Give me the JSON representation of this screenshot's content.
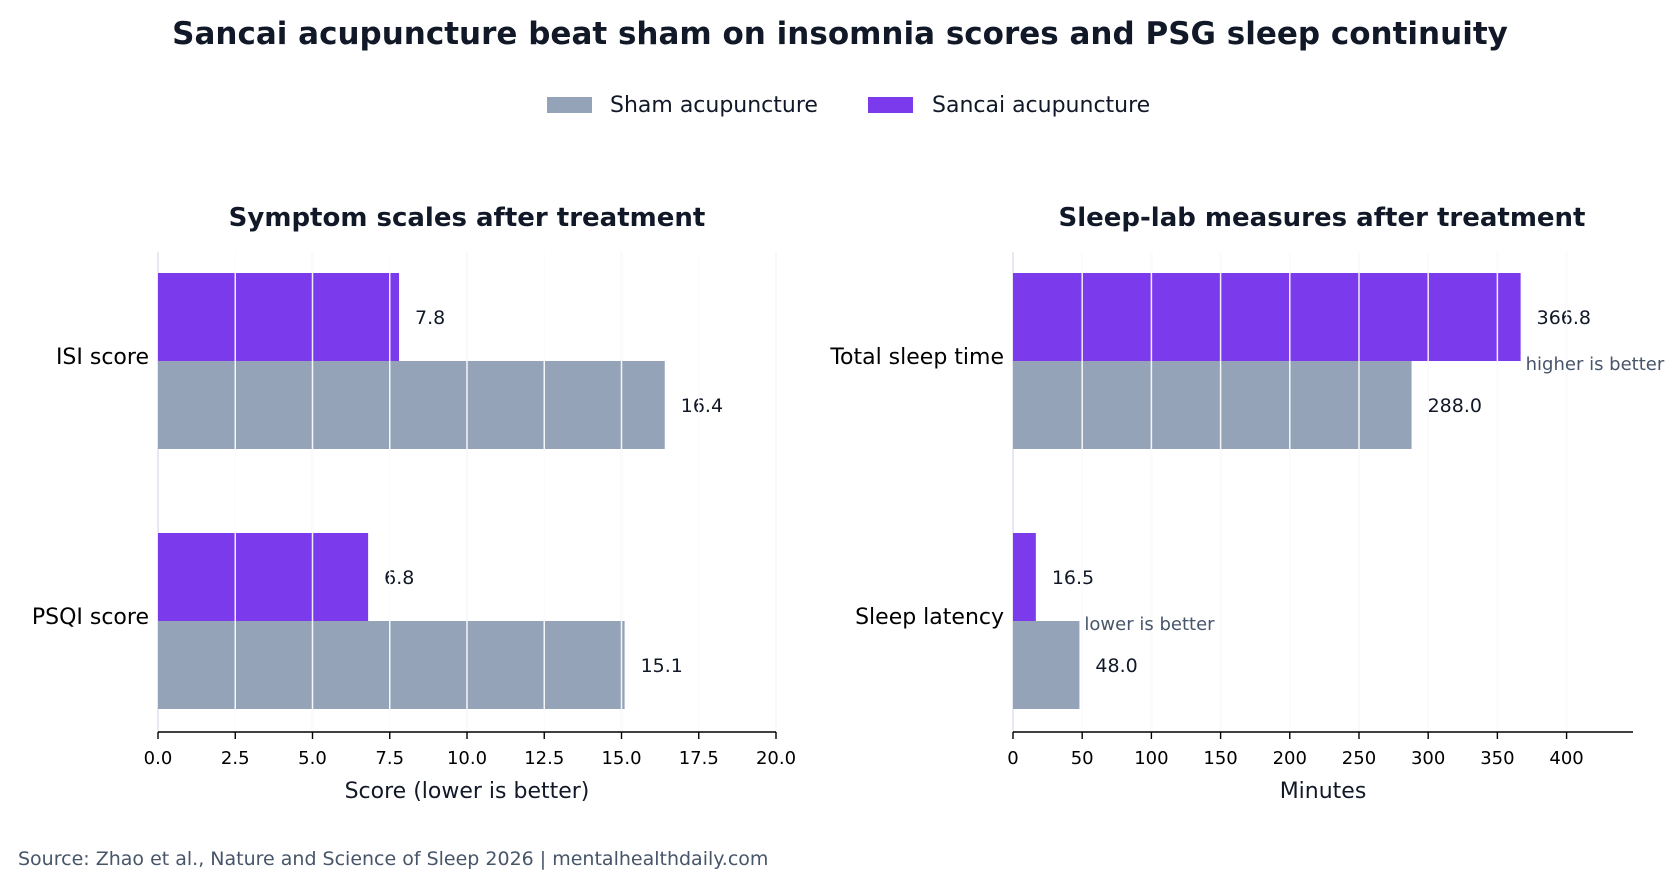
{
  "title": "Sancai acupuncture beat sham on insomnia scores and PSG sleep continuity",
  "legend": [
    {
      "name": "Sham acupuncture",
      "color": "#94a3b8"
    },
    {
      "name": "Sancai acupuncture",
      "color": "#7c3aed"
    }
  ],
  "source": "Source: Zhao et al., Nature and Science of Sleep 2026 | mentalhealthdaily.com",
  "colors": {
    "grid": "#e0e0ee",
    "gridOverlay": "#ffffff",
    "axis": "#000000"
  },
  "chart_data": [
    {
      "type": "bar",
      "orientation": "horizontal",
      "title": "Symptom scales after treatment",
      "categories": [
        "ISI score",
        "PSQI score"
      ],
      "series": [
        {
          "name": "Sancai acupuncture",
          "values": [
            7.8,
            6.8
          ],
          "value_labels": [
            "7.8",
            "6.8"
          ]
        },
        {
          "name": "Sham acupuncture",
          "values": [
            16.4,
            15.1
          ],
          "value_labels": [
            "16.4",
            "15.1"
          ]
        }
      ],
      "xlabel": "Score (lower is better)",
      "xlim": [
        0,
        20
      ],
      "xticks": [
        0,
        2.5,
        5,
        7.5,
        10,
        12.5,
        15,
        17.5,
        20
      ],
      "xtick_labels": [
        "0.0",
        "2.5",
        "5.0",
        "7.5",
        "10.0",
        "12.5",
        "15.0",
        "17.5",
        "20.0"
      ],
      "grid": true,
      "annotations": []
    },
    {
      "type": "bar",
      "orientation": "horizontal",
      "title": "Sleep-lab measures after treatment",
      "categories": [
        "Total sleep time",
        "Sleep latency"
      ],
      "series": [
        {
          "name": "Sancai acupuncture",
          "values": [
            366.8,
            16.5
          ],
          "value_labels": [
            "366.8",
            "16.5"
          ]
        },
        {
          "name": "Sham acupuncture",
          "values": [
            288.0,
            48.0
          ],
          "value_labels": [
            "288.0",
            "48.0"
          ]
        }
      ],
      "xlabel": "Minutes",
      "xlim": [
        0,
        448
      ],
      "xticks": [
        0,
        50,
        100,
        150,
        200,
        250,
        300,
        350,
        400
      ],
      "xtick_labels": [
        "0",
        "50",
        "100",
        "150",
        "200",
        "250",
        "300",
        "350",
        "400"
      ],
      "grid": true,
      "annotations": [
        {
          "category": "Total sleep time",
          "text": "higher is better",
          "at_value": 366.8
        },
        {
          "category": "Sleep latency",
          "text": "lower is better",
          "at_value": 48.0
        }
      ]
    }
  ]
}
